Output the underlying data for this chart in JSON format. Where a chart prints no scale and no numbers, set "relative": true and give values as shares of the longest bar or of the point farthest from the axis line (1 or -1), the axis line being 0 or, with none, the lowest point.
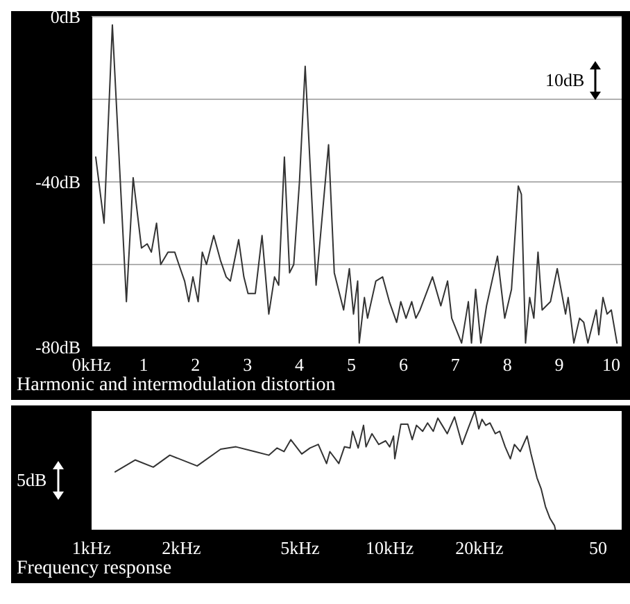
{
  "chart_data": [
    {
      "type": "line",
      "title": "Harmonic and intermodulation distortion",
      "color": "#333333",
      "marker": "none",
      "grid": "y",
      "annotations": [
        "10dB"
      ],
      "x": [
        0.08,
        0.24,
        0.4,
        0.67,
        0.8,
        0.96,
        1.07,
        1.15,
        1.25,
        1.33,
        1.47,
        1.6,
        1.68,
        1.79,
        1.87,
        1.95,
        2.05,
        2.13,
        2.21,
        2.35,
        2.48,
        2.59,
        2.67,
        2.83,
        2.93,
        3.01,
        3.15,
        3.28,
        3.41,
        3.52,
        3.6,
        3.71,
        3.81,
        3.89,
        4.0,
        4.11,
        4.32,
        4.56,
        4.67,
        4.85,
        4.96,
        5.04,
        5.12,
        5.15,
        5.25,
        5.31,
        5.47,
        5.6,
        5.73,
        5.87,
        5.95,
        6.05,
        6.16,
        6.24,
        6.32,
        6.56,
        6.72,
        6.85,
        6.93,
        7.12,
        7.25,
        7.31,
        7.39,
        7.49,
        7.6,
        7.81,
        7.95,
        8.08,
        8.21,
        8.27,
        8.35,
        8.43,
        8.51,
        8.59,
        8.67,
        8.83,
        8.96,
        9.12,
        9.17,
        9.28,
        9.39,
        9.47,
        9.55,
        9.71,
        9.76,
        9.84,
        9.92,
        10.0,
        10.11
      ],
      "values": [
        -34,
        -50,
        -2,
        -69,
        -39,
        -56,
        -55,
        -57,
        -50,
        -60,
        -57,
        -57,
        -60,
        -64,
        -69,
        -63,
        -69,
        -57,
        -60,
        -53,
        -59,
        -63,
        -64,
        -54,
        -63,
        -67,
        -67,
        -53,
        -72,
        -63,
        -65,
        -34,
        -62,
        -60,
        -40,
        -12,
        -65,
        -31,
        -62,
        -71,
        -61,
        -72,
        -64,
        -79,
        -68,
        -73,
        -64,
        -63,
        -69,
        -74,
        -69,
        -73,
        -69,
        -73,
        -71,
        -63,
        -70,
        -64,
        -73,
        -79,
        -69,
        -79,
        -66,
        -79,
        -70,
        -58,
        -73,
        -66,
        -41,
        -43,
        -79,
        -68,
        -73,
        -57,
        -71,
        -69,
        -61,
        -72,
        -68,
        -79,
        -73,
        -74,
        -79,
        -71,
        -77,
        -68,
        -72,
        -71,
        -79
      ],
      "xlim": [
        0,
        10.2
      ],
      "xticks": [
        {
          "value": 0,
          "label": "0kHz"
        },
        1,
        2,
        3,
        4,
        5,
        6,
        7,
        8,
        9,
        10
      ],
      "ylim": [
        -80,
        0
      ],
      "yticks": [
        {
          "value": 0,
          "label": "0dB"
        },
        {
          "value": -20,
          "label": null
        },
        {
          "value": -40,
          "label": "-40dB"
        },
        {
          "value": -60,
          "label": null
        },
        {
          "value": -80,
          "label": "-80dB"
        }
      ]
    },
    {
      "type": "line",
      "title": "Frequency response",
      "color": "#333333",
      "marker": "none",
      "relative": true,
      "log": "x",
      "annotations": [
        "5dB"
      ],
      "x": [
        1.2,
        1.4,
        1.61,
        1.83,
        2.26,
        2.71,
        3.05,
        3.53,
        3.93,
        4.19,
        4.42,
        4.66,
        5.07,
        5.4,
        5.76,
        6.14,
        6.3,
        6.75,
        7.05,
        7.36,
        7.51,
        7.84,
        8.17,
        8.33,
        8.72,
        9.19,
        9.69,
        10.0,
        10.3,
        10.4,
        10.9,
        11.5,
        11.9,
        12.3,
        12.9,
        13.4,
        14.0,
        14.5,
        15.0,
        15.6,
        16.5,
        17.5,
        18.3,
        19.3,
        19.9,
        20.4,
        21.0,
        21.7,
        22.6,
        23.4,
        24.4,
        25.4,
        26.2,
        27.4,
        28.9,
        29.8,
        31.2,
        32.2,
        33.3,
        34.5,
        35.7,
        36
      ],
      "values": [
        0.49,
        0.59,
        0.53,
        0.63,
        0.54,
        0.68,
        0.7,
        0.66,
        0.63,
        0.69,
        0.66,
        0.76,
        0.64,
        0.69,
        0.72,
        0.56,
        0.66,
        0.56,
        0.7,
        0.69,
        0.83,
        0.69,
        0.88,
        0.7,
        0.81,
        0.72,
        0.75,
        0.7,
        0.79,
        0.6,
        0.89,
        0.89,
        0.76,
        0.88,
        0.83,
        0.9,
        0.83,
        0.94,
        0.88,
        0.81,
        0.95,
        0.72,
        0.85,
        1,
        0.85,
        0.93,
        0.88,
        0.9,
        0.81,
        0.83,
        0.7,
        0.6,
        0.72,
        0.66,
        0.79,
        0.64,
        0.44,
        0.35,
        0.2,
        0.1,
        0.04,
        0
      ],
      "xlim": [
        1,
        60
      ],
      "xticks": [
        {
          "value": 1,
          "label": "1kHz"
        },
        {
          "value": 2,
          "label": "2kHz"
        },
        {
          "value": 5,
          "label": "5kHz"
        },
        {
          "value": 10,
          "label": "10kHz"
        },
        {
          "value": 20,
          "label": "20kHz"
        },
        50
      ]
    }
  ]
}
